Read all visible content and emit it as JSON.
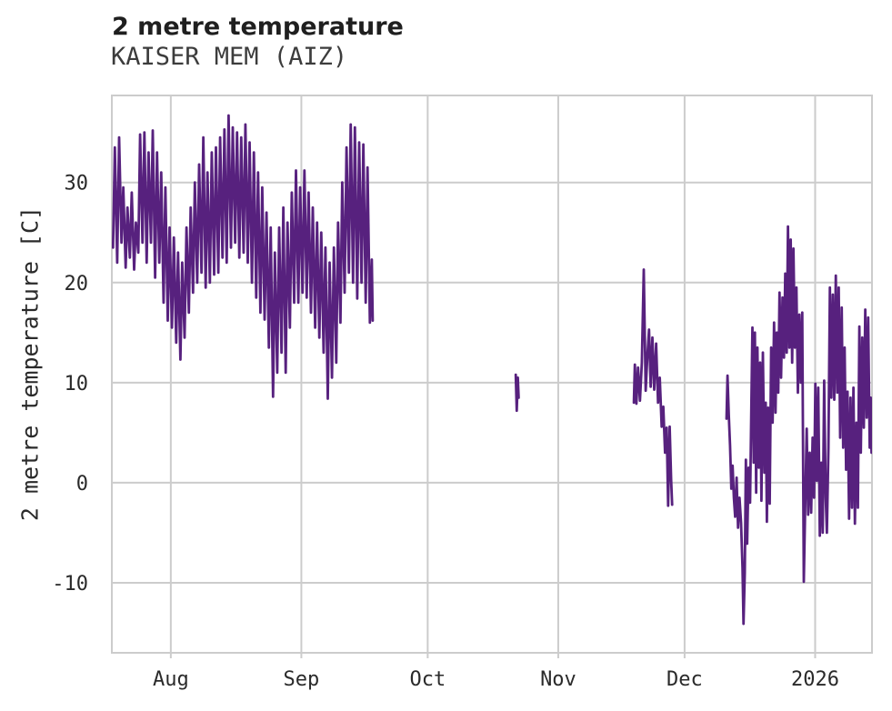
{
  "chart_data": {
    "type": "line",
    "title": "2 metre temperature",
    "subtitle": "KAISER MEM (AIZ)",
    "ylabel": "2 metre temperature [C]",
    "xlabel": "",
    "legend": false,
    "grid": true,
    "x_unit": "days since first sample (mid-July 2025)",
    "xlim": [
      0,
      180.5
    ],
    "ylim": [
      -17.0,
      38.7
    ],
    "x_ticks": [
      {
        "day": 14,
        "label": "Aug"
      },
      {
        "day": 45,
        "label": "Sep"
      },
      {
        "day": 75,
        "label": "Oct"
      },
      {
        "day": 106,
        "label": "Nov"
      },
      {
        "day": 136,
        "label": "Dec"
      },
      {
        "day": 167,
        "label": "2026"
      }
    ],
    "y_ticks": [
      30,
      20,
      10,
      0,
      -10
    ],
    "line_color": "#57217e",
    "grid_color": "#cccccc",
    "tick_label_color": "#2a2a2a",
    "title_color": "#1f1f1f",
    "subtitle_color": "#3c3c3c",
    "background": "#ffffff",
    "series": [
      {
        "name": "2 metre temperature",
        "segments": [
          {
            "kind": "daily_minmax",
            "start_day": 0,
            "days": [
              [
                23.5,
                33.5
              ],
              [
                22,
                34.5
              ],
              [
                24,
                29.5
              ],
              [
                21.5,
                27.5
              ],
              [
                22.5,
                29
              ],
              [
                21.3,
                26
              ],
              [
                23,
                34.8
              ],
              [
                24,
                35
              ],
              [
                22,
                33
              ],
              [
                24,
                35.2
              ],
              [
                20.5,
                33
              ],
              [
                22,
                31
              ],
              [
                18,
                29.5
              ],
              [
                16.2,
                25.5
              ],
              [
                15.5,
                24.5
              ],
              [
                14,
                23
              ],
              [
                12.3,
                22
              ],
              [
                14.5,
                25.5
              ],
              [
                17,
                27.5
              ],
              [
                19,
                30
              ],
              [
                20,
                31.8
              ],
              [
                21,
                34.5
              ],
              [
                19.5,
                31
              ],
              [
                20,
                33
              ],
              [
                20.8,
                33.5
              ],
              [
                21,
                34.5
              ],
              [
                22.5,
                35.3
              ],
              [
                22,
                36.7
              ],
              [
                23.5,
                35.5
              ],
              [
                24,
                35
              ],
              [
                22.5,
                34.5
              ],
              [
                23,
                35.8
              ],
              [
                22,
                34
              ],
              [
                20,
                33
              ],
              [
                18.5,
                31
              ],
              [
                17,
                29.5
              ],
              [
                16.3,
                27
              ],
              [
                13.5,
                25.5
              ],
              [
                8.6,
                23
              ],
              [
                11,
                25.5
              ],
              [
                13,
                27.5
              ],
              [
                11,
                26
              ],
              [
                15.5,
                29
              ],
              [
                18,
                31.2
              ],
              [
                18,
                29.5
              ],
              [
                19,
                31.2
              ],
              [
                18.5,
                29
              ],
              [
                17,
                27.5
              ],
              [
                15.5,
                26
              ],
              [
                14.5,
                25
              ],
              [
                13,
                23.5
              ],
              [
                8.4,
                22
              ],
              [
                10.5,
                23.5
              ],
              [
                12,
                26
              ],
              [
                16,
                30
              ],
              [
                19,
                33.5
              ],
              [
                21,
                35.8
              ],
              [
                20,
                35.5
              ],
              [
                18.4,
                34
              ],
              [
                20,
                33.8
              ],
              [
                18,
                31.5
              ],
              [
                16,
                22.3
              ]
            ],
            "end_points": [
              [
                61.95,
                16.2
              ]
            ]
          },
          {
            "kind": "points",
            "points": [
              [
                95.9,
                10.8
              ],
              [
                96.15,
                7.2
              ],
              [
                96.4,
                10.5
              ],
              [
                96.6,
                8.5
              ]
            ]
          },
          {
            "kind": "points",
            "points": [
              [
                123.95,
                8.0
              ],
              [
                124.2,
                11.8
              ],
              [
                124.55,
                7.9
              ],
              [
                124.95,
                11.5
              ],
              [
                125.4,
                8.2
              ],
              [
                125.85,
                12.0
              ],
              [
                126.3,
                21.3
              ],
              [
                126.75,
                9.2
              ],
              [
                127.15,
                12.5
              ],
              [
                127.55,
                15.3
              ],
              [
                127.95,
                9.6
              ],
              [
                128.35,
                14.5
              ],
              [
                128.8,
                9.3
              ],
              [
                129.25,
                13.9
              ],
              [
                129.7,
                8.0
              ],
              [
                130.1,
                10.5
              ],
              [
                130.55,
                5.6
              ],
              [
                130.95,
                7.6
              ],
              [
                131.35,
                3.0
              ],
              [
                131.75,
                5.5
              ],
              [
                132.1,
                -2.3
              ],
              [
                132.45,
                5.6
              ],
              [
                132.8,
                0.3
              ],
              [
                133.05,
                -2.2
              ]
            ]
          },
          {
            "kind": "points",
            "points": [
              [
                145.95,
                6.4
              ],
              [
                146.2,
                10.7
              ],
              [
                146.5,
                6.8
              ],
              [
                146.8,
                3.7
              ],
              [
                147.1,
                -0.6
              ],
              [
                147.4,
                1.7
              ],
              [
                147.7,
                -1.5
              ],
              [
                148.0,
                -3.4
              ],
              [
                148.35,
                0.5
              ],
              [
                148.7,
                -4.5
              ],
              [
                149.05,
                -1.5
              ],
              [
                149.4,
                -4.0
              ],
              [
                149.75,
                -8.5
              ],
              [
                150.0,
                -14.1
              ],
              [
                150.3,
                -9.0
              ],
              [
                150.55,
                2.3
              ],
              [
                150.85,
                -6.1
              ],
              [
                151.2,
                1.5
              ],
              [
                151.55,
                -2.0
              ],
              [
                151.85,
                7.5
              ],
              [
                152.1,
                15.5
              ],
              [
                152.4,
                2.0
              ],
              [
                152.7,
                15.0
              ],
              [
                153.0,
                -1.0
              ],
              [
                153.3,
                13.5
              ],
              [
                153.65,
                1.5
              ],
              [
                153.95,
                12.0
              ],
              [
                154.25,
                -1.8
              ],
              [
                154.6,
                13.0
              ],
              [
                154.95,
                1.0
              ],
              [
                155.25,
                8.0
              ],
              [
                155.55,
                -3.9
              ],
              [
                155.85,
                7.5
              ],
              [
                156.2,
                -2.1
              ],
              [
                156.55,
                13.5
              ],
              [
                156.9,
                6.0
              ],
              [
                157.25,
                16.0
              ],
              [
                157.6,
                7.0
              ],
              [
                157.9,
                15.0
              ],
              [
                158.25,
                9.0
              ],
              [
                158.55,
                19.0
              ],
              [
                158.9,
                10.5
              ],
              [
                159.25,
                18.5
              ],
              [
                159.6,
                12.5
              ],
              [
                159.9,
                20.9
              ],
              [
                160.25,
                13.0
              ],
              [
                160.55,
                25.6
              ],
              [
                160.9,
                13.5
              ],
              [
                161.2,
                24.3
              ],
              [
                161.55,
                12.0
              ],
              [
                161.85,
                23.4
              ],
              [
                162.2,
                13.5
              ],
              [
                162.55,
                19.5
              ],
              [
                162.9,
                9.0
              ],
              [
                163.25,
                16.8
              ],
              [
                163.6,
                10.0
              ],
              [
                163.95,
                17.0
              ],
              [
                164.3,
                -9.9
              ],
              [
                164.65,
                -2.0
              ],
              [
                165.0,
                5.4
              ],
              [
                165.35,
                -3.2
              ],
              [
                165.7,
                3.0
              ],
              [
                166.05,
                -3.0
              ],
              [
                166.4,
                4.5
              ],
              [
                166.75,
                -1.5
              ],
              [
                167.05,
                9.9
              ],
              [
                167.4,
                0.2
              ],
              [
                167.75,
                9.5
              ],
              [
                168.1,
                -5.3
              ],
              [
                168.45,
                2.0
              ],
              [
                168.8,
                -5.0
              ],
              [
                169.15,
                10.2
              ],
              [
                169.5,
                -1.5
              ],
              [
                169.8,
                -5.0
              ],
              [
                170.15,
                3.5
              ],
              [
                170.5,
                19.5
              ],
              [
                170.85,
                8.5
              ],
              [
                171.2,
                18.8
              ],
              [
                171.55,
                8.3
              ],
              [
                171.9,
                20.7
              ],
              [
                172.25,
                9.0
              ],
              [
                172.6,
                19.5
              ],
              [
                172.95,
                4.5
              ],
              [
                173.3,
                17.5
              ],
              [
                173.65,
                3.5
              ],
              [
                174.0,
                13.5
              ],
              [
                174.35,
                1.3
              ],
              [
                174.7,
                9.1
              ],
              [
                175.05,
                -3.6
              ],
              [
                175.4,
                8.5
              ],
              [
                175.75,
                -2.5
              ],
              [
                176.1,
                9.5
              ],
              [
                176.45,
                -4.1
              ],
              [
                176.8,
                6.0
              ],
              [
                177.15,
                -2.5
              ],
              [
                177.5,
                15.6
              ],
              [
                177.85,
                3.0
              ],
              [
                178.2,
                14.5
              ],
              [
                178.55,
                5.5
              ],
              [
                178.9,
                17.3
              ],
              [
                179.25,
                6.5
              ],
              [
                179.6,
                16.5
              ],
              [
                179.95,
                3.5
              ],
              [
                180.2,
                8.5
              ],
              [
                180.4,
                3.0
              ]
            ]
          }
        ]
      }
    ]
  }
}
